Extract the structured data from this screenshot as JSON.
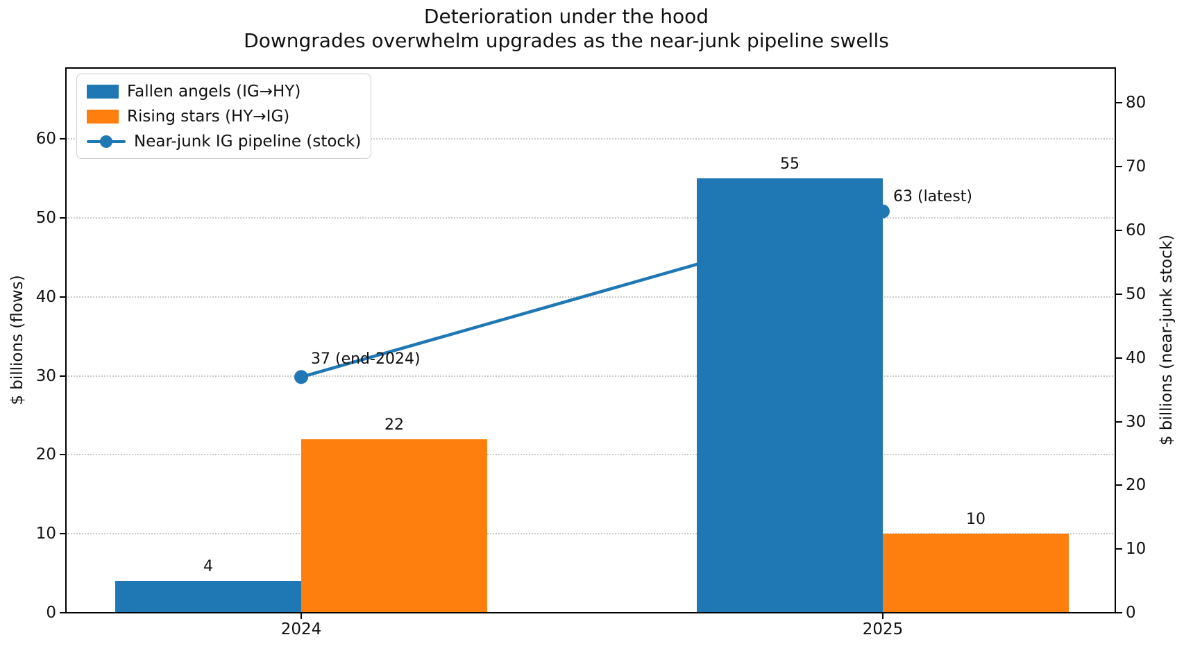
{
  "figure": {
    "background": "#ffffff",
    "title": "Deterioration under the hood",
    "subtitle": "Downgrades overwhelm upgrades as the near-junk pipeline swells"
  },
  "colors": {
    "blue": "#1f77b4",
    "orange": "#ff7f0e",
    "grid": "#c9c9c9",
    "spine": "#000000"
  },
  "chart_data": {
    "type": "bar",
    "title": "Deterioration under the hood",
    "subtitle": "Downgrades overwhelm upgrades as the near-junk pipeline swells",
    "categories": [
      "2024",
      "2025"
    ],
    "series": [
      {
        "name": "Fallen angels (IG→HY)",
        "kind": "bar",
        "axis": "left",
        "color": "#1f77b4",
        "values": [
          4,
          55
        ],
        "value_labels": [
          "4",
          "55"
        ]
      },
      {
        "name": "Rising stars (HY→IG)",
        "kind": "bar",
        "axis": "left",
        "color": "#ff7f0e",
        "values": [
          22,
          10
        ],
        "value_labels": [
          "22",
          "10"
        ]
      },
      {
        "name": "Near-junk IG pipeline (stock)",
        "kind": "line",
        "axis": "right",
        "color": "#1f77b4",
        "values": [
          37,
          63
        ],
        "point_labels": [
          "37 (end-2024)",
          "63 (latest)"
        ]
      }
    ],
    "ylabel_left": "$ billions (flows)",
    "ylabel_right": "$ billions (near-junk stock)",
    "ylim_left": [
      0,
      69
    ],
    "ylim_right": [
      0,
      85.5
    ],
    "yticks_left": [
      0,
      10,
      20,
      30,
      40,
      50,
      60
    ],
    "yticks_right": [
      0,
      10,
      20,
      30,
      40,
      50,
      60,
      70,
      80
    ],
    "xlabel": "",
    "grid": {
      "show": true,
      "style": "dotted",
      "axis": "y",
      "at": "left-ticks"
    },
    "legend_position": "upper left"
  }
}
